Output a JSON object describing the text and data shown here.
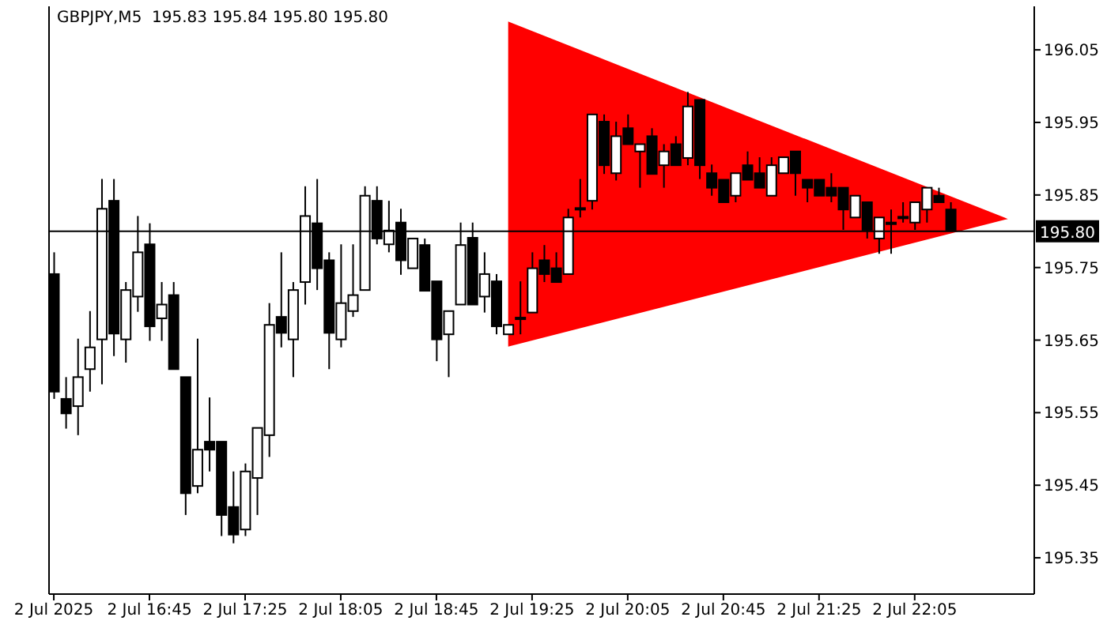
{
  "chart_data": {
    "type": "candlestick",
    "title": "GBPJPY,M5  195.83 195.84 195.80 195.80",
    "color": "#000000",
    "x": [
      "2025-07-02T16:05",
      "2025-07-02T16:10",
      "2025-07-02T16:15",
      "2025-07-02T16:20",
      "2025-07-02T16:25",
      "2025-07-02T16:30",
      "2025-07-02T16:35",
      "2025-07-02T16:40",
      "2025-07-02T16:45",
      "2025-07-02T16:50",
      "2025-07-02T16:55",
      "2025-07-02T17:00",
      "2025-07-02T17:05",
      "2025-07-02T17:10",
      "2025-07-02T17:15",
      "2025-07-02T17:20",
      "2025-07-02T17:25",
      "2025-07-02T17:30",
      "2025-07-02T17:35",
      "2025-07-02T17:40",
      "2025-07-02T17:45",
      "2025-07-02T17:50",
      "2025-07-02T17:55",
      "2025-07-02T18:00",
      "2025-07-02T18:05",
      "2025-07-02T18:10",
      "2025-07-02T18:15",
      "2025-07-02T18:20",
      "2025-07-02T18:25",
      "2025-07-02T18:30",
      "2025-07-02T18:35",
      "2025-07-02T18:40",
      "2025-07-02T18:45",
      "2025-07-02T18:50",
      "2025-07-02T18:55",
      "2025-07-02T19:00",
      "2025-07-02T19:05",
      "2025-07-02T19:10",
      "2025-07-02T19:15",
      "2025-07-02T19:20",
      "2025-07-02T19:25",
      "2025-07-02T19:30",
      "2025-07-02T19:35",
      "2025-07-02T19:40",
      "2025-07-02T19:45",
      "2025-07-02T19:50",
      "2025-07-02T19:55",
      "2025-07-02T20:00",
      "2025-07-02T20:05",
      "2025-07-02T20:10",
      "2025-07-02T20:15",
      "2025-07-02T20:20",
      "2025-07-02T20:25",
      "2025-07-02T20:30",
      "2025-07-02T20:35",
      "2025-07-02T20:40",
      "2025-07-02T20:45",
      "2025-07-02T20:50",
      "2025-07-02T20:55",
      "2025-07-02T21:00",
      "2025-07-02T21:05",
      "2025-07-02T21:10",
      "2025-07-02T21:15",
      "2025-07-02T21:20",
      "2025-07-02T21:25",
      "2025-07-02T21:30",
      "2025-07-02T21:35",
      "2025-07-02T21:40",
      "2025-07-02T21:45",
      "2025-07-02T21:50",
      "2025-07-02T21:55",
      "2025-07-02T22:00",
      "2025-07-02T22:05",
      "2025-07-02T22:10",
      "2025-07-02T22:15",
      "2025-07-02T22:20"
    ],
    "ohlc": [
      [
        195.741,
        195.771,
        195.569,
        195.579
      ],
      [
        195.569,
        195.599,
        195.528,
        195.549
      ],
      [
        195.559,
        195.652,
        195.519,
        195.599
      ],
      [
        195.61,
        195.69,
        195.579,
        195.64
      ],
      [
        195.651,
        195.872,
        195.589,
        195.831
      ],
      [
        195.842,
        195.872,
        195.628,
        195.659
      ],
      [
        195.651,
        195.73,
        195.619,
        195.719
      ],
      [
        195.71,
        195.821,
        195.689,
        195.771
      ],
      [
        195.782,
        195.811,
        195.649,
        195.669
      ],
      [
        195.68,
        195.73,
        195.649,
        195.699
      ],
      [
        195.712,
        195.73,
        195.61,
        195.61
      ],
      [
        195.599,
        195.599,
        195.409,
        195.439
      ],
      [
        195.449,
        195.652,
        195.439,
        195.499
      ],
      [
        195.51,
        195.571,
        195.469,
        195.499
      ],
      [
        195.51,
        195.51,
        195.38,
        195.409
      ],
      [
        195.42,
        195.469,
        195.37,
        195.382
      ],
      [
        195.389,
        195.48,
        195.38,
        195.469
      ],
      [
        195.46,
        195.529,
        195.409,
        195.529
      ],
      [
        195.519,
        195.701,
        195.489,
        195.671
      ],
      [
        195.682,
        195.771,
        195.64,
        195.66
      ],
      [
        195.651,
        195.73,
        195.599,
        195.719
      ],
      [
        195.73,
        195.862,
        195.699,
        195.821
      ],
      [
        195.811,
        195.872,
        195.719,
        195.749
      ],
      [
        195.76,
        195.771,
        195.61,
        195.66
      ],
      [
        195.651,
        195.782,
        195.64,
        195.701
      ],
      [
        195.69,
        195.782,
        195.682,
        195.712
      ],
      [
        195.719,
        195.862,
        195.719,
        195.849
      ],
      [
        195.842,
        195.862,
        195.782,
        195.79
      ],
      [
        195.782,
        195.842,
        195.771,
        195.801
      ],
      [
        195.812,
        195.831,
        195.74,
        195.76
      ],
      [
        195.749,
        195.79,
        195.749,
        195.79
      ],
      [
        195.781,
        195.79,
        195.718,
        195.718
      ],
      [
        195.731,
        195.731,
        195.621,
        195.651
      ],
      [
        195.658,
        195.69,
        195.599,
        195.69
      ],
      [
        195.699,
        195.812,
        195.699,
        195.781
      ],
      [
        195.791,
        195.812,
        195.699,
        195.699
      ],
      [
        195.71,
        195.771,
        195.688,
        195.741
      ],
      [
        195.731,
        195.741,
        195.658,
        195.669
      ],
      [
        195.658,
        195.671,
        195.658,
        195.671
      ],
      [
        195.68,
        195.731,
        195.658,
        195.681
      ],
      [
        195.688,
        195.771,
        195.688,
        195.749
      ],
      [
        195.76,
        195.781,
        195.73,
        195.741
      ],
      [
        195.749,
        195.771,
        195.73,
        195.73
      ],
      [
        195.741,
        195.831,
        195.741,
        195.819
      ],
      [
        195.831,
        195.872,
        195.819,
        195.832
      ],
      [
        195.842,
        195.961,
        195.83,
        195.961
      ],
      [
        195.951,
        195.961,
        195.879,
        195.891
      ],
      [
        195.88,
        195.951,
        195.87,
        195.931
      ],
      [
        195.942,
        195.961,
        195.92,
        195.92
      ],
      [
        195.91,
        195.92,
        195.86,
        195.92
      ],
      [
        195.931,
        195.942,
        195.879,
        195.879
      ],
      [
        195.891,
        195.92,
        195.86,
        195.91
      ],
      [
        195.92,
        195.931,
        195.891,
        195.891
      ],
      [
        195.901,
        195.992,
        195.891,
        195.972
      ],
      [
        195.981,
        195.981,
        195.872,
        195.891
      ],
      [
        195.88,
        195.892,
        195.849,
        195.86
      ],
      [
        195.871,
        195.871,
        195.84,
        195.84
      ],
      [
        195.849,
        195.88,
        195.84,
        195.88
      ],
      [
        195.891,
        195.91,
        195.871,
        195.871
      ],
      [
        195.88,
        195.902,
        195.86,
        195.86
      ],
      [
        195.849,
        195.902,
        195.849,
        195.891
      ],
      [
        195.88,
        195.902,
        195.88,
        195.902
      ],
      [
        195.91,
        195.91,
        195.849,
        195.88
      ],
      [
        195.871,
        195.871,
        195.84,
        195.86
      ],
      [
        195.871,
        195.871,
        195.849,
        195.849
      ],
      [
        195.86,
        195.88,
        195.84,
        195.849
      ],
      [
        195.86,
        195.86,
        195.802,
        195.83
      ],
      [
        195.819,
        195.849,
        195.819,
        195.849
      ],
      [
        195.84,
        195.84,
        195.79,
        195.802
      ],
      [
        195.79,
        195.819,
        195.769,
        195.819
      ],
      [
        195.812,
        195.83,
        195.769,
        195.811
      ],
      [
        195.819,
        195.84,
        195.812,
        195.82
      ],
      [
        195.812,
        195.84,
        195.802,
        195.84
      ],
      [
        195.83,
        195.86,
        195.812,
        195.86
      ],
      [
        195.849,
        195.86,
        195.84,
        195.84
      ],
      [
        195.83,
        195.84,
        195.802,
        195.802
      ]
    ],
    "series": [
      {
        "type": "area",
        "color": "#ff0000",
        "x": [
          "2025-07-02T19:15",
          "2025-07-02T22:44"
        ],
        "values": [
          null,
          null
        ],
        "lower": [
          195.641,
          195.817
        ],
        "upper": [
          196.089,
          195.817
        ]
      }
    ],
    "xlim": [
      "2025-07-02T16:03",
      "2025-07-02T22:55"
    ],
    "xticks": [
      {
        "value": "2025-07-02T16:05",
        "label": "2 Jul 2025"
      },
      {
        "value": "2025-07-02T16:45",
        "label": "2 Jul 16:45"
      },
      {
        "value": "2025-07-02T17:25",
        "label": "2 Jul 17:25"
      },
      {
        "value": "2025-07-02T18:05",
        "label": "2 Jul 18:05"
      },
      {
        "value": "2025-07-02T18:45",
        "label": "2 Jul 18:45"
      },
      {
        "value": "2025-07-02T19:25",
        "label": "2 Jul 19:25"
      },
      {
        "value": "2025-07-02T20:05",
        "label": "2 Jul 20:05"
      },
      {
        "value": "2025-07-02T20:45",
        "label": "2 Jul 20:45"
      },
      {
        "value": "2025-07-02T21:25",
        "label": "2 Jul 21:25"
      },
      {
        "value": "2025-07-02T22:05",
        "label": "2 Jul 22:05"
      }
    ],
    "ylim": [
      195.3,
      196.11
    ],
    "yticks": [
      195.35,
      195.45,
      195.55,
      195.65,
      195.75,
      195.85,
      195.95,
      196.05
    ],
    "ref_lines": [
      {
        "axis": "y",
        "value": 195.8,
        "label": "195.80",
        "color": "#000000"
      }
    ]
  }
}
